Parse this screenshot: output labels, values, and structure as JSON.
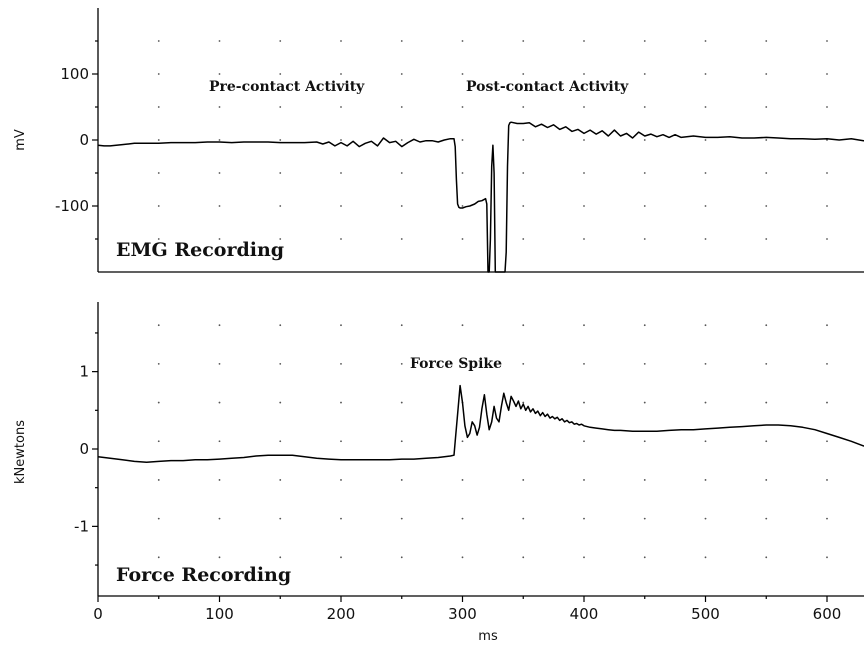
{
  "chart_data": [
    {
      "type": "line",
      "title": "EMG Recording",
      "xlabel": "",
      "ylabel": "mV",
      "xlim": [
        0,
        635
      ],
      "ylim": [
        -200,
        200
      ],
      "y_ticks": [
        100,
        0,
        -100
      ],
      "annotations": [
        {
          "text": "Pre-contact Activity",
          "x": 155,
          "y": 70
        },
        {
          "text": "Post-contact Activity",
          "x": 395,
          "y": 70
        }
      ],
      "series": [
        {
          "x": [
            0,
            5,
            10,
            15,
            20,
            25,
            30,
            40,
            50,
            60,
            70,
            80,
            90,
            100,
            110,
            120,
            130,
            140,
            150,
            160,
            170,
            180,
            185,
            190,
            195,
            200,
            205,
            210,
            215,
            220,
            225,
            230,
            235,
            240,
            245,
            250,
            255,
            260,
            265,
            270,
            275,
            280,
            285,
            290,
            293,
            294,
            295,
            296,
            297,
            298,
            300,
            303,
            306,
            310,
            313,
            316,
            319,
            320,
            321,
            322,
            323,
            324,
            325,
            326,
            327,
            328,
            329,
            330,
            331,
            332,
            333,
            334,
            335,
            336,
            337,
            338,
            339,
            340,
            345,
            350,
            355,
            360,
            365,
            370,
            375,
            380,
            385,
            390,
            395,
            400,
            405,
            410,
            415,
            420,
            425,
            430,
            435,
            440,
            445,
            450,
            455,
            460,
            465,
            470,
            475,
            480,
            490,
            500,
            510,
            520,
            530,
            540,
            550,
            560,
            570,
            580,
            590,
            600,
            610,
            620,
            630,
            635
          ],
          "y": [
            -8,
            -9,
            -9,
            -8,
            -7,
            -6,
            -5,
            -5,
            -5,
            -4,
            -4,
            -4,
            -3,
            -3,
            -4,
            -3,
            -3,
            -3,
            -4,
            -4,
            -4,
            -3,
            -6,
            -3,
            -9,
            -4,
            -9,
            -2,
            -10,
            -5,
            -2,
            -9,
            3,
            -4,
            -2,
            -10,
            -4,
            1,
            -3,
            -1,
            -1,
            -3,
            0,
            2,
            2,
            -10,
            -60,
            -97,
            -102,
            -103,
            -103,
            -101,
            -100,
            -97,
            -93,
            -92,
            -89,
            -97,
            -200,
            -200,
            -150,
            -40,
            -8,
            -50,
            -200,
            -200,
            -200,
            -200,
            -200,
            -200,
            -200,
            -200,
            -200,
            -170,
            -40,
            22,
            26,
            27,
            25,
            25,
            26,
            20,
            24,
            19,
            23,
            16,
            20,
            13,
            16,
            10,
            15,
            9,
            14,
            6,
            15,
            6,
            10,
            3,
            12,
            6,
            9,
            5,
            8,
            4,
            8,
            4,
            6,
            4,
            4,
            5,
            3,
            3,
            4,
            3,
            2,
            2,
            1,
            2,
            0,
            2,
            -1,
            -1
          ]
        }
      ]
    },
    {
      "type": "line",
      "title": "Force Recording",
      "xlabel": "ms",
      "ylabel": "kNewtons",
      "xlim": [
        0,
        635
      ],
      "ylim": [
        -1.9,
        1.9
      ],
      "x_ticks": [
        0,
        100,
        200,
        300,
        400,
        500,
        600
      ],
      "y_ticks": [
        1,
        0,
        -1
      ],
      "annotations": [
        {
          "text": "Force Spike",
          "x": 360,
          "y": 1.15
        }
      ],
      "series": [
        {
          "x": [
            0,
            10,
            20,
            30,
            40,
            50,
            60,
            70,
            80,
            90,
            100,
            110,
            120,
            130,
            140,
            150,
            160,
            170,
            180,
            190,
            200,
            210,
            220,
            230,
            240,
            250,
            260,
            270,
            280,
            285,
            290,
            293,
            294,
            296,
            298,
            300,
            302,
            304,
            306,
            308,
            310,
            312,
            314,
            316,
            318,
            320,
            322,
            324,
            326,
            328,
            330,
            332,
            334,
            336,
            338,
            340,
            342,
            344,
            346,
            348,
            350,
            352,
            354,
            356,
            358,
            360,
            362,
            364,
            366,
            368,
            370,
            372,
            374,
            376,
            378,
            380,
            382,
            384,
            386,
            388,
            390,
            392,
            394,
            396,
            398,
            400,
            405,
            410,
            415,
            420,
            425,
            430,
            440,
            450,
            460,
            470,
            480,
            490,
            500,
            510,
            520,
            530,
            540,
            550,
            560,
            570,
            580,
            590,
            600,
            610,
            620,
            630,
            635
          ],
          "y": [
            -0.1,
            -0.12,
            -0.14,
            -0.16,
            -0.17,
            -0.16,
            -0.15,
            -0.15,
            -0.14,
            -0.14,
            -0.13,
            -0.12,
            -0.11,
            -0.09,
            -0.08,
            -0.08,
            -0.08,
            -0.1,
            -0.12,
            -0.13,
            -0.14,
            -0.14,
            -0.14,
            -0.14,
            -0.14,
            -0.13,
            -0.13,
            -0.12,
            -0.11,
            -0.1,
            -0.09,
            -0.08,
            0.1,
            0.45,
            0.82,
            0.6,
            0.3,
            0.15,
            0.2,
            0.35,
            0.3,
            0.18,
            0.28,
            0.52,
            0.7,
            0.45,
            0.25,
            0.35,
            0.55,
            0.4,
            0.35,
            0.55,
            0.72,
            0.6,
            0.5,
            0.68,
            0.62,
            0.55,
            0.62,
            0.52,
            0.58,
            0.5,
            0.55,
            0.48,
            0.52,
            0.46,
            0.49,
            0.43,
            0.47,
            0.42,
            0.45,
            0.4,
            0.42,
            0.39,
            0.41,
            0.37,
            0.39,
            0.35,
            0.37,
            0.34,
            0.35,
            0.32,
            0.33,
            0.31,
            0.32,
            0.3,
            0.28,
            0.27,
            0.26,
            0.25,
            0.24,
            0.24,
            0.23,
            0.23,
            0.23,
            0.24,
            0.25,
            0.25,
            0.26,
            0.27,
            0.28,
            0.29,
            0.3,
            0.31,
            0.31,
            0.3,
            0.28,
            0.25,
            0.2,
            0.15,
            0.1,
            0.04,
            0.02
          ]
        }
      ]
    }
  ]
}
